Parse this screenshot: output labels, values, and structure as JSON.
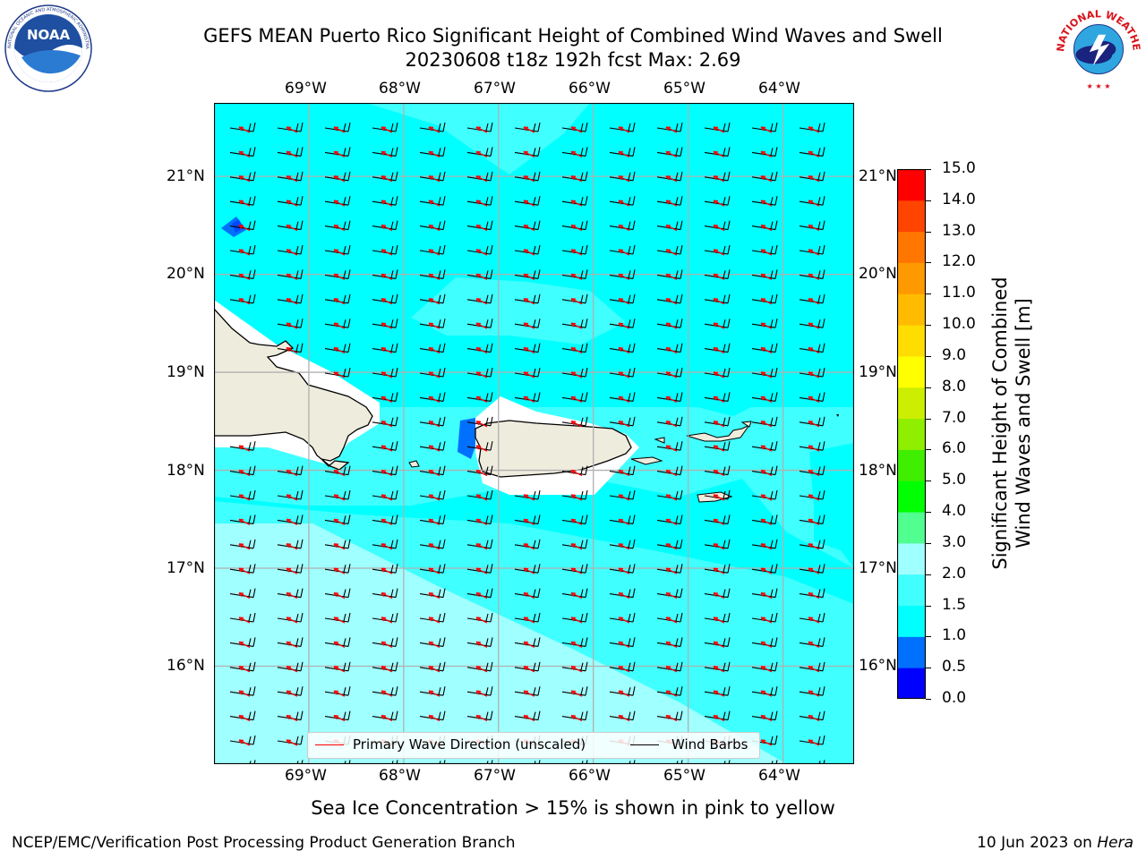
{
  "title": {
    "line1": "GEFS MEAN Puerto Rico Significant Height of Combined Wind Waves and Swell",
    "line2": "20230608 t18z 192h fcst   Max: 2.69"
  },
  "logos": {
    "left": {
      "name": "NOAA",
      "ring_text": "NATIONAL OCEANIC AND ATMOSPHERIC ADMINISTRATION · U.S. DEPARTMENT OF COMMERCE"
    },
    "right": {
      "name": "NATIONAL WEATHER SERVICE"
    }
  },
  "map": {
    "lon_labels": [
      "69°W",
      "68°W",
      "67°W",
      "66°W",
      "65°W",
      "64°W"
    ],
    "lat_labels": [
      "21°N",
      "20°N",
      "19°N",
      "18°N",
      "17°N",
      "16°N"
    ],
    "lon_values": [
      -69,
      -68,
      -67,
      -66,
      -65,
      -64
    ],
    "lat_values": [
      21,
      20,
      19,
      18,
      17,
      16
    ],
    "lon_range": [
      -70,
      -63.25
    ],
    "lat_range": [
      15,
      21.75
    ],
    "gridlines": true,
    "land_color": "#eeecdd",
    "ocean_base_color": "#00ffff"
  },
  "legend": {
    "wave_direction": "Primary Wave Direction (unscaled)",
    "wind_barbs": "Wind Barbs",
    "wave_color": "#ff0000",
    "barb_color": "#000000"
  },
  "colorbar": {
    "label_line1": "Significant Height of Combined",
    "label_line2": "Wind Waves and Swell [m]",
    "ticks": [
      "0.0",
      "0.5",
      "1.0",
      "1.5",
      "2.0",
      "3.0",
      "4.0",
      "5.0",
      "6.0",
      "7.0",
      "8.0",
      "9.0",
      "10.0",
      "11.0",
      "12.0",
      "13.0",
      "14.0",
      "15.0"
    ],
    "colors": [
      "#0000ff",
      "#0070ff",
      "#00ffff",
      "#40ffff",
      "#a0ffff",
      "#50ff90",
      "#00ff00",
      "#40ee00",
      "#90ee00",
      "#ccee00",
      "#ffff00",
      "#ffdd00",
      "#ffbb00",
      "#ff9900",
      "#ff7700",
      "#ff4400",
      "#ff0000"
    ]
  },
  "chart_data": {
    "type": "heatmap",
    "variable": "Significant Height of Combined Wind Waves and Swell [m]",
    "max": 2.69,
    "regions": [
      {
        "range_m": [
          0.0,
          0.5
        ],
        "label": "trace near 69.8°W 20.5°N"
      },
      {
        "range_m": [
          0.5,
          1.0
        ],
        "label": "small patches west of Puerto Rico and NE of Hispaniola"
      },
      {
        "range_m": [
          1.0,
          1.5
        ],
        "label": "open ocean north of 18°N"
      },
      {
        "range_m": [
          1.5,
          2.0
        ],
        "label": "mid band and Caribbean north of 16.5°N"
      },
      {
        "range_m": [
          2.0,
          3.0
        ],
        "label": "southwest Caribbean diagonal band"
      }
    ]
  },
  "sea_ice_note": "Sea Ice Concentration > 15% is shown in pink to yellow",
  "footer": {
    "left": "NCEP/EMC/Verification Post Processing Product Generation Branch",
    "right_prefix": "10 Jun 2023 on ",
    "right_host": "Hera"
  }
}
